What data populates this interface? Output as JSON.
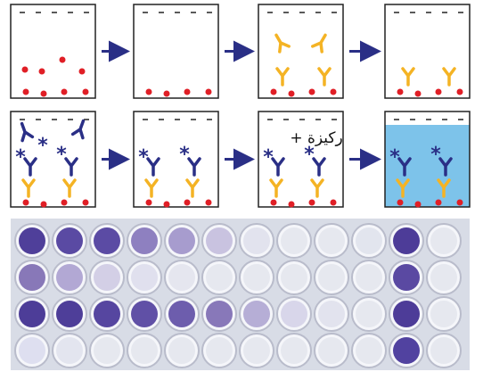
{
  "steps": [
    {
      "label": "ركيزة +"
    }
  ]
}
